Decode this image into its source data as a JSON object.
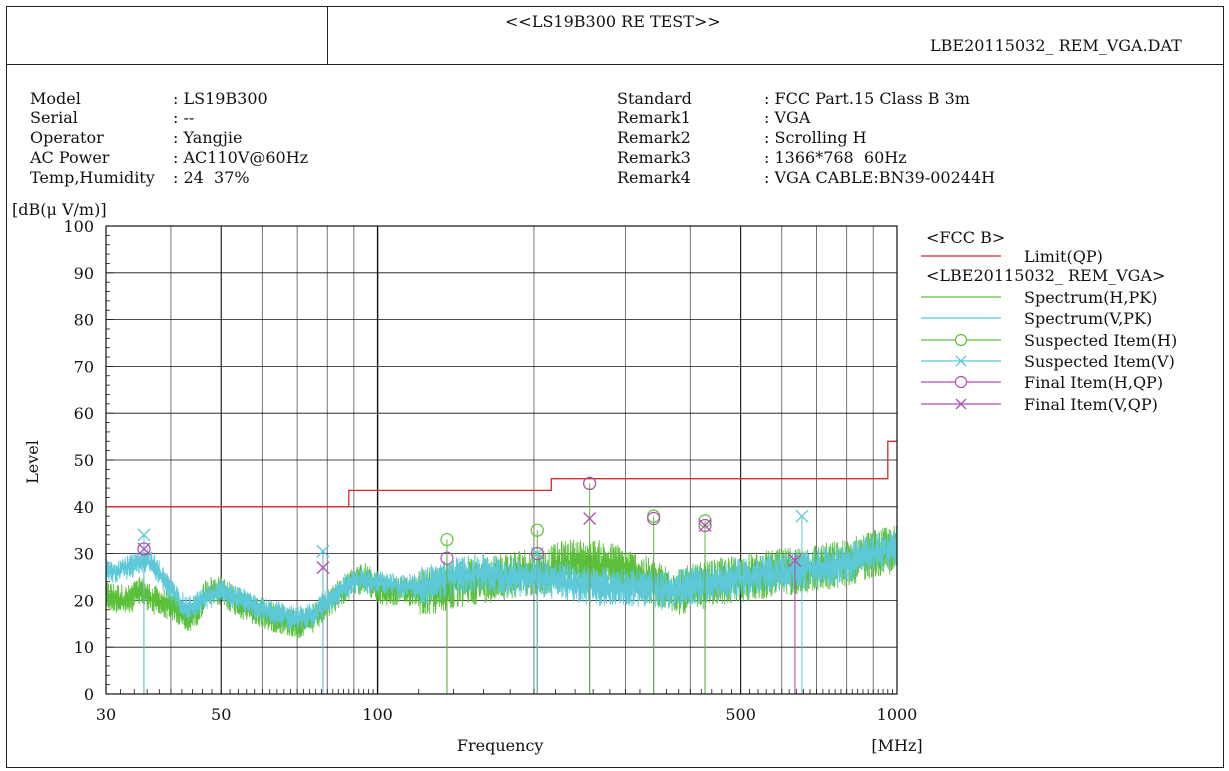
{
  "header": {
    "title": "<<LS19B300 RE TEST>>",
    "file": "LBE20115032_ REM_VGA.DAT"
  },
  "info_left": [
    {
      "key": "Model",
      "value": ": LS19B300"
    },
    {
      "key": "Serial",
      "value": ": --"
    },
    {
      "key": "Operator",
      "value": ": Yangjie"
    },
    {
      "key": "AC Power",
      "value": ": AC110V@60Hz"
    },
    {
      "key": "Temp,Humidity",
      "value": ": 24  37%"
    }
  ],
  "info_right": [
    {
      "key": "Standard",
      "value": ": FCC Part.15 Class B 3m"
    },
    {
      "key": "Remark1",
      "value": ": VGA"
    },
    {
      "key": "Remark2",
      "value": ": Scrolling H"
    },
    {
      "key": "Remark3",
      "value": ": 1366*768  60Hz"
    },
    {
      "key": "Remark4",
      "value": ": VGA CABLE:BN39-00244H"
    }
  ],
  "chart_data": {
    "type": "line",
    "x_scale": "log",
    "xlim": [
      30,
      1000
    ],
    "ylim": [
      0,
      100
    ],
    "unit_label": "[dB(μ V/m)]",
    "ylabel": "Level",
    "xlabel": "Frequency",
    "x_unit": "[MHz]",
    "x_ticks": [
      30,
      50,
      100,
      500,
      1000
    ],
    "y_ticks": [
      0,
      10,
      20,
      30,
      40,
      50,
      60,
      70,
      80,
      90,
      100
    ],
    "grid": true,
    "legend_position": "right",
    "legend": [
      {
        "label": "<FCC B>",
        "kind": "header",
        "color": "#111111"
      },
      {
        "label": "Limit(QP)",
        "kind": "line",
        "color": "#d62a2a"
      },
      {
        "label": "<LBE20115032_ REM_VGA>",
        "kind": "header",
        "color": "#111111"
      },
      {
        "label": "Spectrum(H,PK)",
        "kind": "line",
        "color": "#5bbf3a"
      },
      {
        "label": "Spectrum(V,PK)",
        "kind": "line",
        "color": "#5cc8d8"
      },
      {
        "label": "Suspected Item(H)",
        "kind": "circle",
        "color": "#5bbf3a"
      },
      {
        "label": "Suspected Item(V)",
        "kind": "cross",
        "color": "#5cc8d8"
      },
      {
        "label": "Final Item(H,QP)",
        "kind": "circle",
        "color": "#b24fb2"
      },
      {
        "label": "Final Item(V,QP)",
        "kind": "cross",
        "color": "#b24fb2"
      }
    ],
    "limit_qp": [
      [
        30,
        40
      ],
      [
        88,
        40
      ],
      [
        88,
        43.5
      ],
      [
        216,
        43.5
      ],
      [
        216,
        46
      ],
      [
        960,
        46
      ],
      [
        960,
        54
      ],
      [
        1000,
        54
      ]
    ],
    "spectrum_h_envelope": [
      [
        30,
        21
      ],
      [
        33,
        20
      ],
      [
        35,
        22
      ],
      [
        37,
        20
      ],
      [
        40,
        19
      ],
      [
        43,
        16
      ],
      [
        45,
        18
      ],
      [
        47,
        22
      ],
      [
        50,
        22
      ],
      [
        55,
        19
      ],
      [
        60,
        17
      ],
      [
        65,
        16
      ],
      [
        70,
        15
      ],
      [
        75,
        16
      ],
      [
        80,
        19
      ],
      [
        85,
        22
      ],
      [
        90,
        24
      ],
      [
        95,
        25
      ],
      [
        100,
        22
      ],
      [
        110,
        22
      ],
      [
        120,
        22
      ],
      [
        130,
        22
      ],
      [
        140,
        23
      ],
      [
        150,
        24
      ],
      [
        170,
        25
      ],
      [
        190,
        26
      ],
      [
        210,
        26
      ],
      [
        230,
        28
      ],
      [
        260,
        28
      ],
      [
        290,
        27
      ],
      [
        320,
        25
      ],
      [
        350,
        23
      ],
      [
        380,
        22
      ],
      [
        420,
        23
      ],
      [
        460,
        24
      ],
      [
        520,
        25
      ],
      [
        600,
        26
      ],
      [
        700,
        27
      ],
      [
        800,
        28
      ],
      [
        900,
        30
      ],
      [
        1000,
        31
      ]
    ],
    "spectrum_v_envelope": [
      [
        30,
        26
      ],
      [
        33,
        27
      ],
      [
        35,
        28
      ],
      [
        36,
        29
      ],
      [
        38,
        26
      ],
      [
        40,
        22
      ],
      [
        43,
        18
      ],
      [
        46,
        20
      ],
      [
        50,
        22
      ],
      [
        55,
        20
      ],
      [
        60,
        18
      ],
      [
        65,
        17
      ],
      [
        70,
        16
      ],
      [
        75,
        17
      ],
      [
        80,
        20
      ],
      [
        85,
        22
      ],
      [
        90,
        24
      ],
      [
        100,
        24
      ],
      [
        110,
        23
      ],
      [
        120,
        23
      ],
      [
        130,
        24
      ],
      [
        140,
        25
      ],
      [
        160,
        26
      ],
      [
        180,
        25
      ],
      [
        200,
        25
      ],
      [
        230,
        24
      ],
      [
        260,
        23
      ],
      [
        300,
        23
      ],
      [
        350,
        22
      ],
      [
        400,
        23
      ],
      [
        450,
        24
      ],
      [
        520,
        25
      ],
      [
        600,
        26
      ],
      [
        700,
        27
      ],
      [
        800,
        28
      ],
      [
        900,
        30
      ],
      [
        1000,
        31
      ]
    ],
    "suspected_h": [
      [
        35.5,
        31
      ],
      [
        136,
        33
      ],
      [
        203,
        35
      ],
      [
        256,
        45
      ],
      [
        340,
        38
      ],
      [
        427,
        37
      ]
    ],
    "suspected_v": [
      [
        35.5,
        34
      ],
      [
        78.5,
        30.5
      ],
      [
        203,
        30
      ],
      [
        656,
        38
      ]
    ],
    "final_h_qp": [
      [
        35.5,
        31
      ],
      [
        136,
        29
      ],
      [
        203,
        30
      ],
      [
        256,
        45
      ],
      [
        340,
        37.5
      ],
      [
        427,
        36
      ]
    ],
    "final_v_qp": [
      [
        35.5,
        31
      ],
      [
        78.5,
        27
      ],
      [
        256,
        37.5
      ],
      [
        427,
        36
      ],
      [
        636,
        28.5
      ]
    ],
    "marker_stems": [
      35.5,
      78.5,
      136,
      203,
      256,
      340,
      427,
      636
    ]
  }
}
